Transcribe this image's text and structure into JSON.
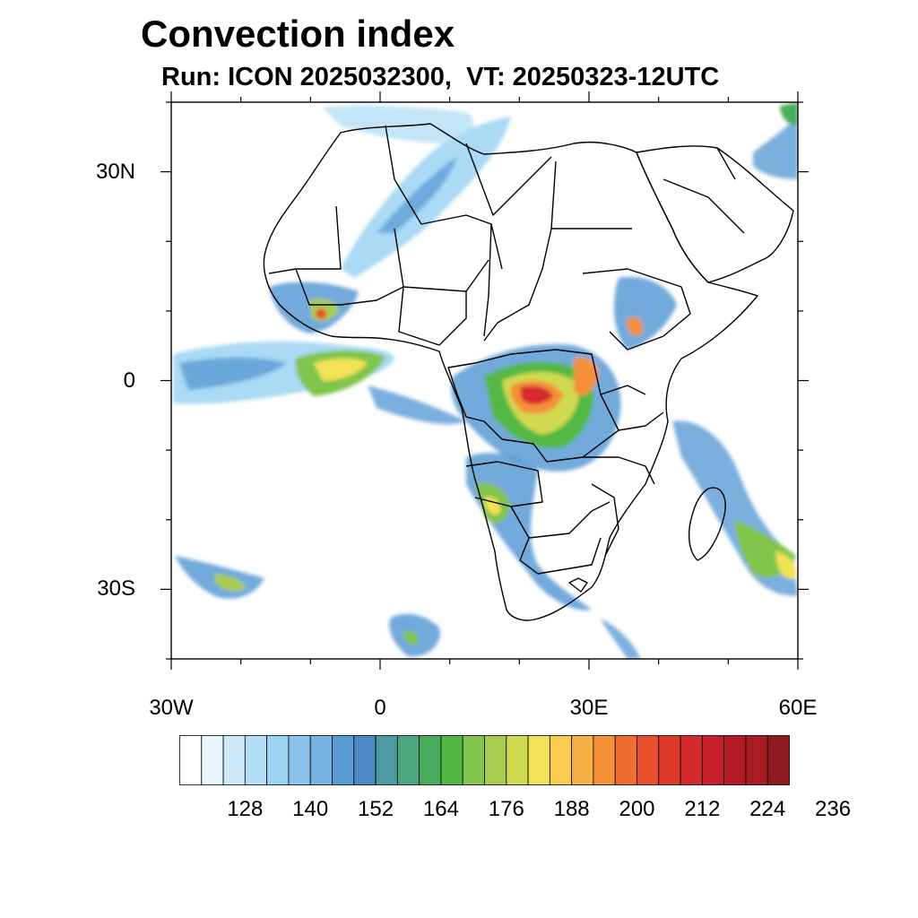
{
  "title": "Convection index",
  "subtitle": "Run: ICON 2025032300,  VT: 20250323-12UTC",
  "map": {
    "lon_range": [
      -30,
      60
    ],
    "lat_range": [
      -40,
      40
    ],
    "lat_ticks": [
      {
        "value": 30,
        "label": "30N"
      },
      {
        "value": 0,
        "label": "0"
      },
      {
        "value": -30,
        "label": "30S"
      }
    ],
    "lon_ticks": [
      {
        "value": -30,
        "label": "30W"
      },
      {
        "value": 0,
        "label": "0"
      },
      {
        "value": 30,
        "label": "30E"
      },
      {
        "value": 60,
        "label": "60E"
      }
    ]
  },
  "colorbar": {
    "colors": [
      "#ffffff",
      "#e6f4fc",
      "#cde9f8",
      "#b4def5",
      "#9bd3f2",
      "#8ac4ea",
      "#77b3e2",
      "#5b9bd5",
      "#4b88c4",
      "#4c9aa2",
      "#4aa780",
      "#47ad5c",
      "#55b845",
      "#80c44b",
      "#a8cc4f",
      "#d1d951",
      "#f1e257",
      "#f9cc50",
      "#f7b044",
      "#f49038",
      "#ee6d31",
      "#e6502b",
      "#dd3a2a",
      "#d42a2d",
      "#c41f2a",
      "#b51b26",
      "#a71b22",
      "#8e1a1f"
    ],
    "labels": [
      "128",
      "140",
      "152",
      "164",
      "176",
      "188",
      "200",
      "212",
      "224",
      "236"
    ]
  }
}
